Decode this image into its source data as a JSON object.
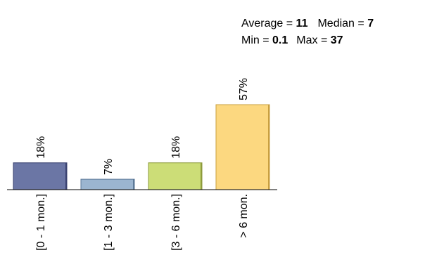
{
  "stats": {
    "average_label": "Average = ",
    "average_value": "11",
    "median_label": "Median = ",
    "median_value": "7",
    "min_label": "Min = ",
    "min_value": "0.1",
    "max_label": "Max = ",
    "max_value": "37"
  },
  "chart_data": {
    "type": "bar",
    "title": "",
    "xlabel": "",
    "ylabel": "",
    "categories": [
      "[0 - 1 mon.]",
      "[1 - 3 mon.]",
      "[3 - 6 mon.]",
      "> 6 mon."
    ],
    "values": [
      18,
      7,
      18,
      57
    ],
    "value_labels": [
      "18%",
      "7%",
      "18%",
      "57%"
    ],
    "unit": "%",
    "colors": [
      "#6b76a5",
      "#9bb5d0",
      "#ccdd77",
      "#fcd880"
    ],
    "edge_colors": [
      "#3a4270",
      "#5d7a98",
      "#8e9b3d",
      "#c9a040"
    ],
    "ylim": [
      0,
      57
    ],
    "grid": false,
    "legend": "none"
  }
}
